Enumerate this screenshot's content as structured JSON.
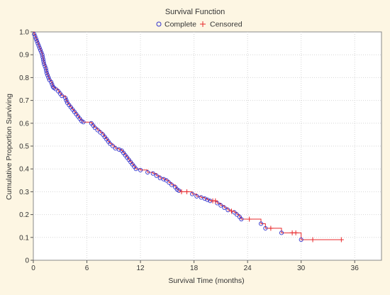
{
  "chart_data": {
    "type": "line",
    "title": "Survival Function",
    "xlabel": "Survival Time (months)",
    "ylabel": "Cumulative Proportion Surviving",
    "xlim": [
      0,
      39
    ],
    "ylim": [
      0,
      1.0
    ],
    "x_ticks": [
      0,
      6,
      12,
      18,
      24,
      30,
      36
    ],
    "y_ticks": [
      0,
      0.1,
      0.2,
      0.3,
      0.4,
      0.5,
      0.6,
      0.7,
      0.8,
      0.9,
      1.0
    ],
    "x_tick_labels": [
      "0",
      "6",
      "12",
      "18",
      "24",
      "30",
      "36"
    ],
    "y_tick_labels": [
      "0",
      "0.1",
      "0.2",
      "0.3",
      "0.4",
      "0.5",
      "0.6",
      "0.7",
      "0.8",
      "0.9",
      "1.0"
    ],
    "grid": true,
    "legend_position": "top-center",
    "legend": [
      {
        "name": "Complete",
        "marker": "circle",
        "color": "#3333cc"
      },
      {
        "name": "Censored",
        "marker": "plus",
        "color": "#e8282b"
      }
    ],
    "line_color": "#e8282b",
    "complete": [
      [
        0.1,
        0.99
      ],
      [
        0.2,
        0.98
      ],
      [
        0.3,
        0.97
      ],
      [
        0.4,
        0.96
      ],
      [
        0.5,
        0.95
      ],
      [
        0.6,
        0.94
      ],
      [
        0.7,
        0.93
      ],
      [
        0.8,
        0.92
      ],
      [
        0.9,
        0.91
      ],
      [
        1.0,
        0.9
      ],
      [
        1.05,
        0.89
      ],
      [
        1.1,
        0.88
      ],
      [
        1.15,
        0.87
      ],
      [
        1.2,
        0.86
      ],
      [
        1.3,
        0.85
      ],
      [
        1.4,
        0.84
      ],
      [
        1.45,
        0.83
      ],
      [
        1.5,
        0.82
      ],
      [
        1.6,
        0.81
      ],
      [
        1.7,
        0.8
      ],
      [
        1.8,
        0.79
      ],
      [
        2.0,
        0.78
      ],
      [
        2.1,
        0.77
      ],
      [
        2.2,
        0.76
      ],
      [
        2.3,
        0.755
      ],
      [
        2.5,
        0.75
      ],
      [
        2.8,
        0.74
      ],
      [
        3.0,
        0.73
      ],
      [
        3.2,
        0.72
      ],
      [
        3.6,
        0.71
      ],
      [
        3.7,
        0.7
      ],
      [
        3.8,
        0.69
      ],
      [
        4.0,
        0.68
      ],
      [
        4.2,
        0.67
      ],
      [
        4.4,
        0.66
      ],
      [
        4.6,
        0.65
      ],
      [
        4.8,
        0.64
      ],
      [
        5.0,
        0.63
      ],
      [
        5.2,
        0.62
      ],
      [
        5.4,
        0.61
      ],
      [
        5.6,
        0.605
      ],
      [
        6.5,
        0.6
      ],
      [
        6.7,
        0.59
      ],
      [
        6.9,
        0.58
      ],
      [
        7.2,
        0.57
      ],
      [
        7.5,
        0.56
      ],
      [
        7.8,
        0.55
      ],
      [
        8.0,
        0.54
      ],
      [
        8.2,
        0.53
      ],
      [
        8.4,
        0.52
      ],
      [
        8.6,
        0.51
      ],
      [
        8.9,
        0.5
      ],
      [
        9.2,
        0.49
      ],
      [
        9.6,
        0.485
      ],
      [
        9.9,
        0.48
      ],
      [
        10.1,
        0.47
      ],
      [
        10.3,
        0.46
      ],
      [
        10.5,
        0.45
      ],
      [
        10.7,
        0.44
      ],
      [
        10.9,
        0.43
      ],
      [
        11.1,
        0.42
      ],
      [
        11.3,
        0.41
      ],
      [
        11.5,
        0.4
      ],
      [
        12.0,
        0.395
      ],
      [
        12.8,
        0.385
      ],
      [
        13.4,
        0.38
      ],
      [
        13.8,
        0.37
      ],
      [
        14.2,
        0.36
      ],
      [
        14.6,
        0.355
      ],
      [
        14.9,
        0.35
      ],
      [
        15.2,
        0.34
      ],
      [
        15.5,
        0.33
      ],
      [
        15.9,
        0.32
      ],
      [
        16.1,
        0.31
      ],
      [
        16.3,
        0.305
      ],
      [
        17.8,
        0.29
      ],
      [
        18.3,
        0.28
      ],
      [
        18.8,
        0.275
      ],
      [
        19.2,
        0.27
      ],
      [
        19.5,
        0.265
      ],
      [
        19.8,
        0.26
      ],
      [
        20.6,
        0.25
      ],
      [
        21.0,
        0.24
      ],
      [
        21.4,
        0.23
      ],
      [
        21.8,
        0.22
      ],
      [
        22.5,
        0.21
      ],
      [
        22.8,
        0.2
      ],
      [
        23.1,
        0.19
      ],
      [
        23.3,
        0.18
      ],
      [
        25.5,
        0.16
      ],
      [
        26.0,
        0.14
      ],
      [
        27.8,
        0.12
      ],
      [
        30.0,
        0.09
      ]
    ],
    "censored": [
      [
        16.6,
        0.3
      ],
      [
        17.2,
        0.3
      ],
      [
        20.1,
        0.26
      ],
      [
        20.4,
        0.26
      ],
      [
        22.2,
        0.215
      ],
      [
        24.2,
        0.18
      ],
      [
        26.6,
        0.14
      ],
      [
        29.0,
        0.12
      ],
      [
        29.4,
        0.12
      ],
      [
        31.3,
        0.09
      ],
      [
        34.5,
        0.09
      ]
    ],
    "curve_end_x": 34.5
  }
}
